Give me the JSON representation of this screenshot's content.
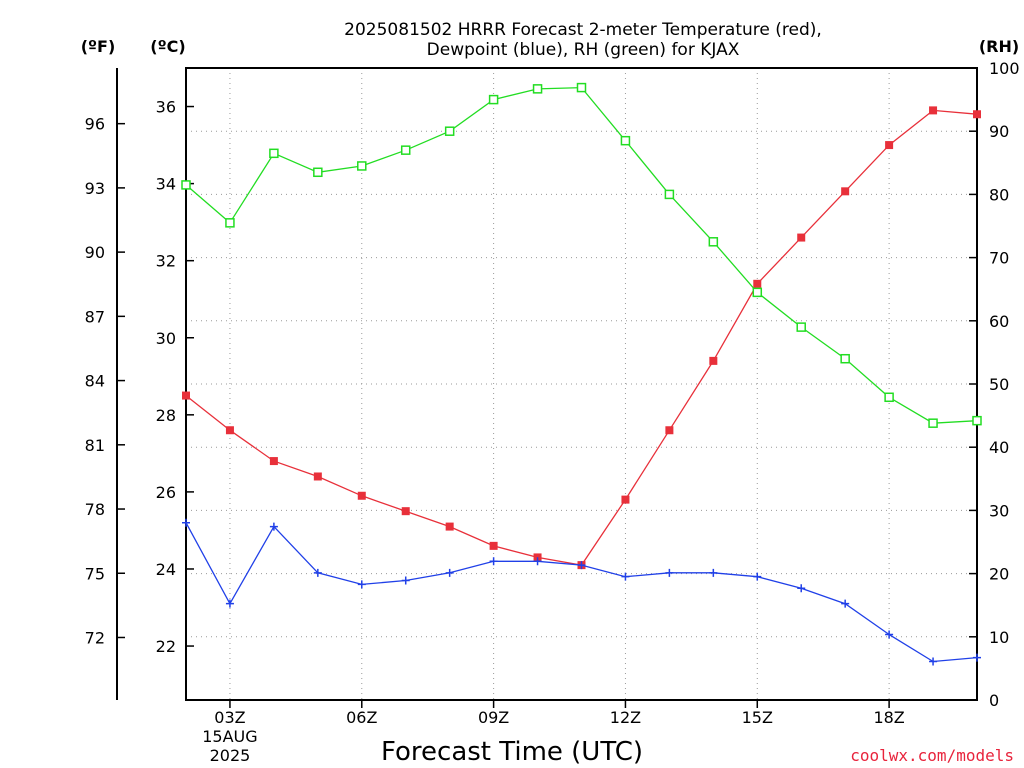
{
  "chart_data": {
    "type": "line",
    "title_line1": "2025081502 HRRR Forecast 2-meter Temperature (red),",
    "title_line2": "Dewpoint (blue), RH (green) for KJAX",
    "xlabel": "Forecast Time (UTC)",
    "credit": "coolwx.com/models",
    "axis_units": {
      "fahrenheit": "(ºF)",
      "celsius": "(ºC)",
      "rh": "(RH)"
    },
    "x_hours": [
      2,
      3,
      4,
      5,
      6,
      7,
      8,
      9,
      10,
      11,
      12,
      13,
      14,
      15,
      16,
      17,
      18,
      19,
      20
    ],
    "x_range": [
      2,
      20
    ],
    "x_ticks": [
      {
        "hour": 3,
        "label": "03Z",
        "sub1": "15AUG",
        "sub2": "2025"
      },
      {
        "hour": 6,
        "label": "06Z"
      },
      {
        "hour": 9,
        "label": "09Z"
      },
      {
        "hour": 12,
        "label": "12Z"
      },
      {
        "hour": 15,
        "label": "15Z"
      },
      {
        "hour": 18,
        "label": "18Z"
      }
    ],
    "celsius_range": [
      20.6,
      37.0
    ],
    "celsius_ticks": [
      22,
      24,
      26,
      28,
      30,
      32,
      34,
      36
    ],
    "fahrenheit_ticks": [
      72,
      75,
      78,
      81,
      84,
      87,
      90,
      93,
      96
    ],
    "rh_range": [
      0,
      100
    ],
    "rh_ticks": [
      0,
      10,
      20,
      30,
      40,
      50,
      60,
      70,
      80,
      90,
      100
    ],
    "series": [
      {
        "key": "temperature",
        "axis": "celsius",
        "color": "#e8303a",
        "marker": "filled-square",
        "values": [
          28.5,
          27.6,
          26.8,
          26.4,
          25.9,
          25.5,
          25.1,
          24.6,
          24.3,
          24.1,
          25.8,
          27.6,
          29.4,
          31.4,
          32.6,
          33.8,
          35.0,
          35.9,
          35.8
        ]
      },
      {
        "key": "dewpoint",
        "axis": "celsius",
        "color": "#2040e8",
        "marker": "plus",
        "values": [
          25.2,
          23.1,
          25.1,
          23.9,
          23.6,
          23.7,
          23.9,
          24.2,
          24.2,
          24.1,
          23.8,
          23.9,
          23.9,
          23.8,
          23.5,
          23.1,
          22.3,
          21.6,
          21.7
        ]
      },
      {
        "key": "rh",
        "axis": "rh",
        "color": "#22dd22",
        "marker": "open-square",
        "values": [
          81.5,
          75.5,
          86.5,
          83.5,
          84.5,
          87,
          90,
          95,
          96.7,
          96.9,
          88.5,
          80,
          72.5,
          64.5,
          59,
          54,
          47.9,
          43.8,
          44.2
        ]
      }
    ]
  }
}
